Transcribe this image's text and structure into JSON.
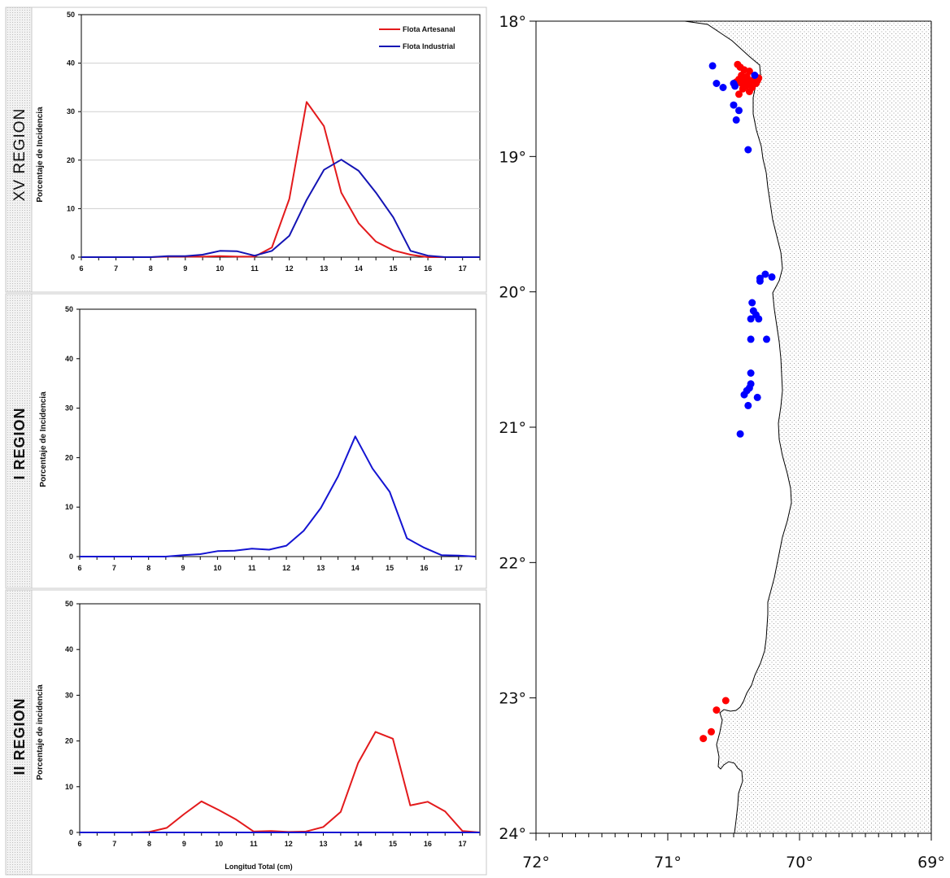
{
  "chart_data": [
    {
      "type": "line",
      "panel_label": "XV REGION",
      "ylabel": "Porcentaje de Incidencia",
      "xlabel": "",
      "x": [
        6,
        6.5,
        7,
        7.5,
        8,
        8.5,
        9,
        9.5,
        10,
        10.5,
        11,
        11.5,
        12,
        12.5,
        13,
        13.5,
        14,
        14.5,
        15,
        15.5,
        16,
        16.5,
        17,
        17.5
      ],
      "xticks": [
        "6",
        "7",
        "8",
        "9",
        "10",
        "11",
        "12",
        "13",
        "14",
        "15",
        "16",
        "17"
      ],
      "yticks": [
        "0",
        "10",
        "20",
        "30",
        "40",
        "50"
      ],
      "xlim": [
        6,
        17.5
      ],
      "ylim": [
        0,
        50
      ],
      "grid": true,
      "legend": "top-right",
      "series": [
        {
          "name": "Flota Artesanal",
          "color": "#e31a1c",
          "values": [
            0,
            0,
            0,
            0,
            0,
            0.1,
            0.1,
            0.1,
            0.2,
            0.1,
            0.1,
            2,
            12,
            32,
            27,
            13.3,
            7,
            3.2,
            1.4,
            0.5,
            0,
            0,
            0,
            0
          ]
        },
        {
          "name": "Flota Industrial",
          "color": "#1414b4",
          "values": [
            0,
            0,
            0,
            0,
            0,
            0.2,
            0.2,
            0.5,
            1.3,
            1.2,
            0.3,
            1.3,
            4.4,
            11.8,
            18,
            20.1,
            17.8,
            13.3,
            8.2,
            1.3,
            0.3,
            0,
            0,
            0
          ]
        }
      ]
    },
    {
      "type": "line",
      "panel_label": "I REGION",
      "ylabel": "Porcentaje de Incidencia",
      "xlabel": "",
      "x": [
        6,
        6.5,
        7,
        7.5,
        8,
        8.5,
        9,
        9.5,
        10,
        10.5,
        11,
        11.5,
        12,
        12.5,
        13,
        13.5,
        14,
        14.5,
        15,
        15.5,
        16,
        16.5,
        17,
        17.5
      ],
      "xticks": [
        "6",
        "7",
        "8",
        "9",
        "10",
        "11",
        "12",
        "13",
        "14",
        "15",
        "16",
        "17"
      ],
      "yticks": [
        "0",
        "10",
        "20",
        "30",
        "40",
        "50"
      ],
      "xlim": [
        6,
        17.5
      ],
      "ylim": [
        0,
        50
      ],
      "grid": false,
      "series": [
        {
          "color": "#1414d2",
          "values": [
            0,
            0,
            0,
            0,
            0,
            0,
            0.3,
            0.5,
            1.1,
            1.2,
            1.6,
            1.4,
            2.2,
            5.2,
            9.8,
            16.2,
            24.3,
            17.8,
            13.1,
            3.7,
            1.8,
            0.3,
            0.2,
            0
          ]
        }
      ]
    },
    {
      "type": "line",
      "panel_label": "II REGION",
      "ylabel": "Porcentaje de incidencia",
      "xlabel": "Longitud Total (cm)",
      "x": [
        6,
        6.5,
        7,
        7.5,
        8,
        8.5,
        9,
        9.5,
        10,
        10.5,
        11,
        11.5,
        12,
        12.5,
        13,
        13.5,
        14,
        14.5,
        15,
        15.5,
        16,
        16.5,
        17,
        17.5
      ],
      "xticks": [
        "6",
        "7",
        "8",
        "9",
        "10",
        "11",
        "12",
        "13",
        "14",
        "15",
        "16",
        "17"
      ],
      "yticks": [
        "0",
        "10",
        "20",
        "30",
        "40",
        "50"
      ],
      "xlim": [
        6,
        17.5
      ],
      "ylim": [
        0,
        50
      ],
      "grid": false,
      "series": [
        {
          "color": "#e31a1c",
          "values": [
            0,
            0,
            0,
            0,
            0.1,
            1,
            4,
            6.8,
            4.9,
            2.8,
            0.2,
            0.3,
            0.1,
            0.2,
            1.2,
            4.5,
            15.2,
            22,
            20.5,
            5.9,
            6.7,
            4.6,
            0.3,
            0
          ]
        },
        {
          "color": "#1414d2",
          "values": [
            0,
            0,
            0,
            0,
            0,
            0,
            0,
            0,
            0,
            0,
            0,
            0,
            0,
            0,
            0,
            0,
            0,
            0,
            0,
            0,
            0,
            0,
            0,
            0
          ]
        }
      ]
    },
    {
      "type": "scatter",
      "panel_label": "map",
      "xlim": [
        72,
        69
      ],
      "ylim": [
        24,
        18
      ],
      "xticks": [
        "72°",
        "71°",
        "70°",
        "69°"
      ],
      "yticks": [
        "18°",
        "19°",
        "20°",
        "21°",
        "22°",
        "23°",
        "24°"
      ],
      "series": [
        {
          "name": "Flota Artesanal",
          "color": "#ff0000",
          "points": [
            [
              70.47,
              18.32
            ],
            [
              70.45,
              18.34
            ],
            [
              70.42,
              18.36
            ],
            [
              70.38,
              18.37
            ],
            [
              70.44,
              18.4
            ],
            [
              70.4,
              18.41
            ],
            [
              70.34,
              18.42
            ],
            [
              70.31,
              18.42
            ],
            [
              70.46,
              18.43
            ],
            [
              70.42,
              18.44
            ],
            [
              70.37,
              18.44
            ],
            [
              70.32,
              18.44
            ],
            [
              70.48,
              18.45
            ],
            [
              70.44,
              18.46
            ],
            [
              70.39,
              18.46
            ],
            [
              70.33,
              18.46
            ],
            [
              70.41,
              18.48
            ],
            [
              70.36,
              18.49
            ],
            [
              70.43,
              18.5
            ],
            [
              70.38,
              18.52
            ],
            [
              70.46,
              18.54
            ],
            [
              70.56,
              23.02
            ],
            [
              70.63,
              23.09
            ],
            [
              70.67,
              23.25
            ],
            [
              70.73,
              23.3
            ]
          ]
        },
        {
          "name": "Flota Industrial",
          "color": "#0000ff",
          "points": [
            [
              70.66,
              18.33
            ],
            [
              70.34,
              18.4
            ],
            [
              70.63,
              18.46
            ],
            [
              70.5,
              18.46
            ],
            [
              70.58,
              18.49
            ],
            [
              70.49,
              18.48
            ],
            [
              70.5,
              18.62
            ],
            [
              70.46,
              18.66
            ],
            [
              70.48,
              18.73
            ],
            [
              70.39,
              18.95
            ],
            [
              70.26,
              19.87
            ],
            [
              70.21,
              19.89
            ],
            [
              70.3,
              19.9
            ],
            [
              70.3,
              19.92
            ],
            [
              70.36,
              20.08
            ],
            [
              70.35,
              20.14
            ],
            [
              70.33,
              20.17
            ],
            [
              70.31,
              20.2
            ],
            [
              70.37,
              20.2
            ],
            [
              70.25,
              20.35
            ],
            [
              70.37,
              20.35
            ],
            [
              70.37,
              20.6
            ],
            [
              70.37,
              20.68
            ],
            [
              70.38,
              20.71
            ],
            [
              70.4,
              20.73
            ],
            [
              70.42,
              20.76
            ],
            [
              70.32,
              20.78
            ],
            [
              70.39,
              20.84
            ],
            [
              70.45,
              21.05
            ]
          ]
        }
      ]
    }
  ]
}
